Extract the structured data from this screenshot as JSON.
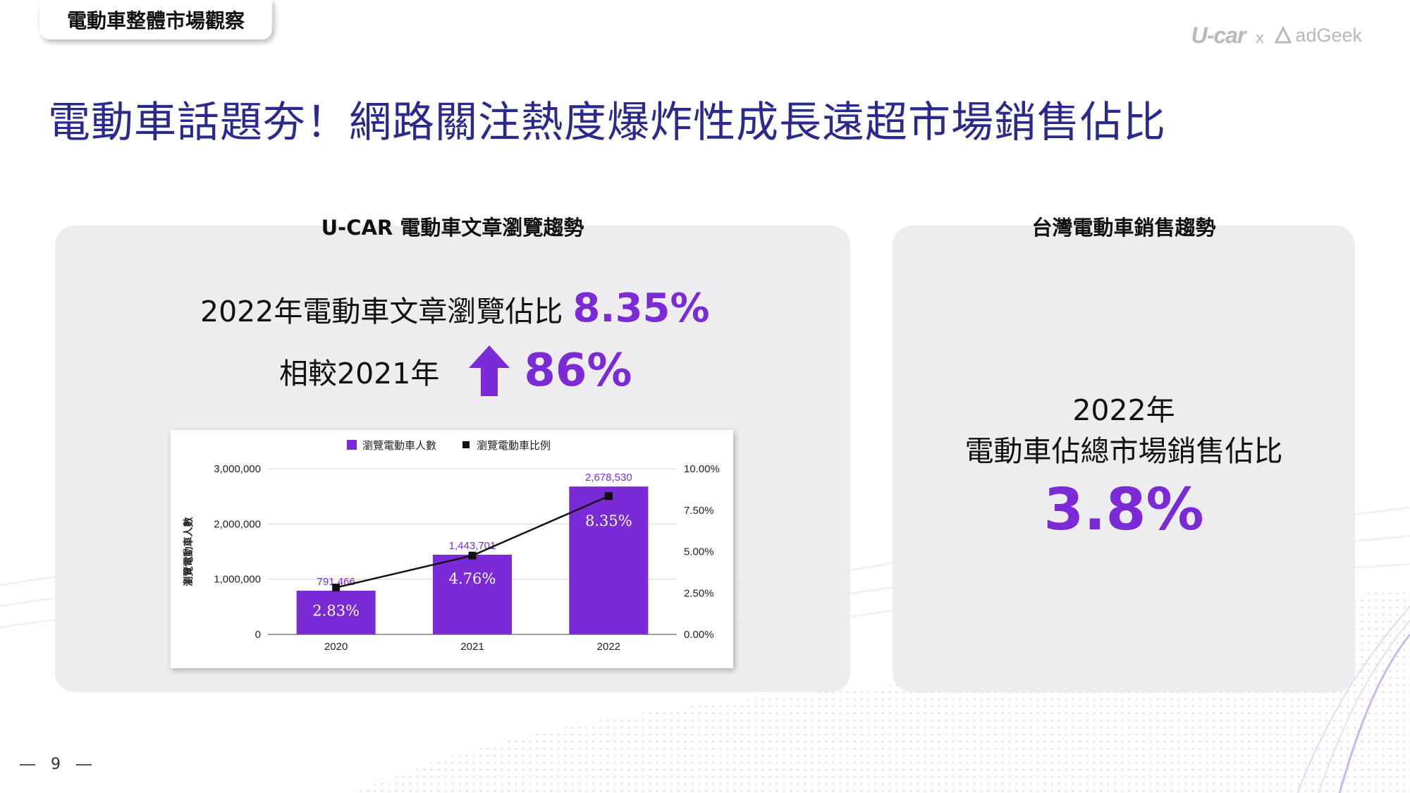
{
  "header": {
    "section_tab": "電動車整體市場觀察",
    "title": "電動車話題夯！網路關注熱度爆炸性成長遠超市場銷售佔比",
    "logos": {
      "left": "U-car",
      "separator": "x",
      "right": "adGeek"
    }
  },
  "left_panel": {
    "title": "U-CAR 電動車文章瀏覽趨勢",
    "kpi_label": "2022年電動車文章瀏覽佔比",
    "kpi_value": "8.35%",
    "compare_label": "相較2021年",
    "compare_icon": "up-arrow-icon",
    "compare_value": "86%"
  },
  "right_panel": {
    "title": "台灣電動車銷售趨勢",
    "label_line1": "2022年",
    "label_line2": "電動車佔總市場銷售佔比",
    "value": "3.8%"
  },
  "footer": {
    "page_number": "9"
  },
  "colors": {
    "accent": "#7b2bd6",
    "title": "#2a2a8c",
    "bar": "#7b2bd6",
    "line": "#111111"
  },
  "chart_data": {
    "type": "bar",
    "categories": [
      "2020",
      "2021",
      "2022"
    ],
    "series": [
      {
        "name": "瀏覽電動車人數",
        "type": "bar",
        "axis": "left",
        "values": [
          791466,
          1443701,
          2678530
        ],
        "labels": [
          "791,466",
          "1,443,701",
          "2,678,530"
        ]
      },
      {
        "name": "瀏覽電動車比例",
        "type": "line",
        "axis": "right",
        "values": [
          2.83,
          4.76,
          8.35
        ],
        "labels": [
          "2.83%",
          "4.76%",
          "8.35%"
        ]
      }
    ],
    "ylabel": "瀏覽電動車人數",
    "ylim": [
      0,
      3000000
    ],
    "y_ticks": [
      "0",
      "1,000,000",
      "2,000,000",
      "3,000,000"
    ],
    "y2lim": [
      0,
      10
    ],
    "y2_ticks": [
      "0.00%",
      "2.50%",
      "5.00%",
      "7.50%",
      "10.00%"
    ],
    "legend_position": "top-center",
    "grid": true
  }
}
